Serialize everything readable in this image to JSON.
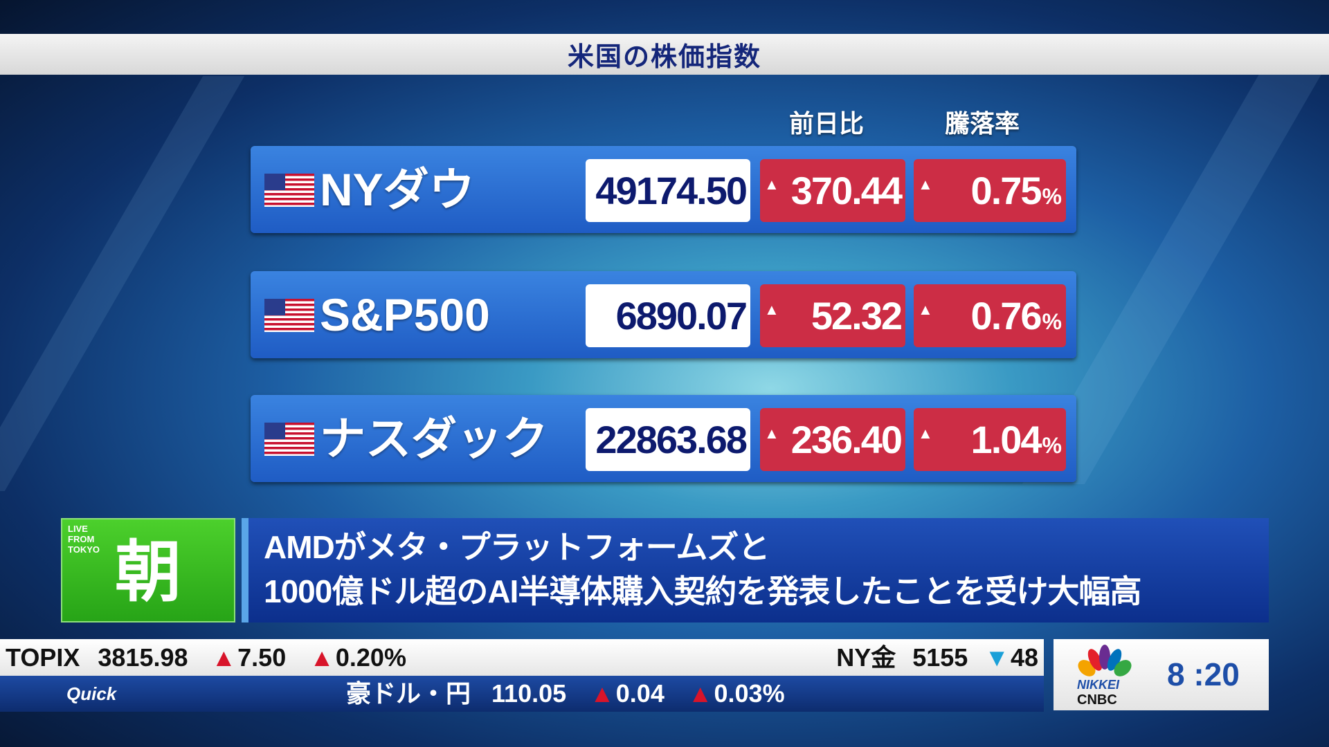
{
  "title": "米国の株価指数",
  "columns": {
    "change": "前日比",
    "rate": "騰落率"
  },
  "indices": [
    {
      "name": "NYダウ",
      "value": "49174.50",
      "change": "370.44",
      "rate": "0.75",
      "direction": "up"
    },
    {
      "name": "S&P500",
      "value": "6890.07",
      "change": "52.32",
      "rate": "0.76",
      "direction": "up"
    },
    {
      "name": "ナスダック",
      "value": "22863.68",
      "change": "236.40",
      "rate": "1.04",
      "direction": "up"
    }
  ],
  "percent_sign": "%",
  "up_marker": "▲",
  "down_marker": "▼",
  "program": {
    "live_from": "LIVE FROM TOKYO",
    "name": "朝"
  },
  "headline": {
    "line1": "AMDがメタ・プラットフォームズと",
    "line2": "1000億ドル超のAI半導体購入契約を発表したことを受け大幅高"
  },
  "ticker": {
    "topix": {
      "label": "TOPIX",
      "value": "3815.98",
      "change": "7.50",
      "rate": "0.20%"
    },
    "gold": {
      "label": "NY金",
      "value": "5155",
      "change": "48"
    },
    "aud": {
      "label": "豪ドル・円",
      "value": "110.05",
      "change": "0.04",
      "rate": "0.03%"
    },
    "source": "Quick"
  },
  "logo": {
    "line1": "NIKKEI",
    "line2": "CNBC"
  },
  "clock": "8 :20",
  "colors": {
    "up": "#cc2d45",
    "down": "#1aa0d8",
    "row": "#2a6fd6",
    "brand_green": "#33b81e"
  }
}
